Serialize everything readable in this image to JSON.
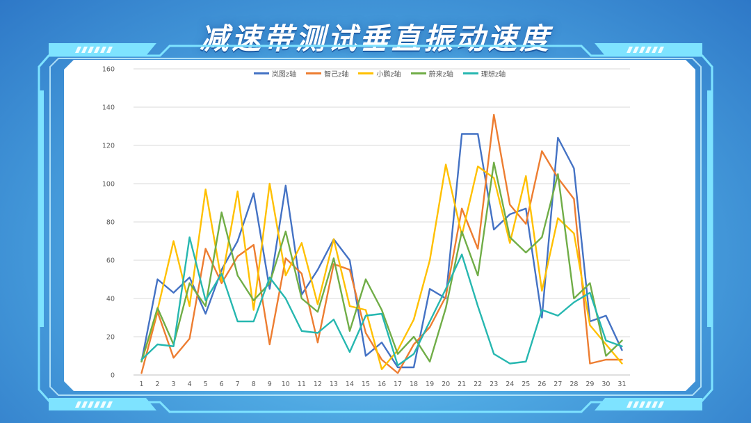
{
  "title": "减速带测试垂直振动速度",
  "colors": {
    "frame_cyan": "#7ee3ff",
    "frame_light": "#c9f3ff",
    "grid": "#d9d9d9",
    "axis": "#bfbfbf"
  },
  "chart_data": {
    "type": "line",
    "title": "",
    "xlabel": "",
    "ylabel": "",
    "ylim": [
      0,
      160
    ],
    "yticks": [
      0,
      20,
      40,
      60,
      80,
      100,
      120,
      140,
      160
    ],
    "grid": true,
    "legend_position": "top-center",
    "categories": [
      "1",
      "2",
      "3",
      "4",
      "5",
      "6",
      "7",
      "8",
      "9",
      "10",
      "11",
      "12",
      "13",
      "14",
      "15",
      "16",
      "17",
      "18",
      "19",
      "20",
      "21",
      "22",
      "23",
      "24",
      "25",
      "26",
      "27",
      "28",
      "29",
      "30",
      "31"
    ],
    "series": [
      {
        "name": "岚图z轴",
        "color": "#4472c4",
        "values": [
          7,
          50,
          43,
          51,
          32,
          55,
          70,
          95,
          45,
          99,
          42,
          55,
          71,
          60,
          10,
          17,
          4,
          4,
          45,
          40,
          126,
          126,
          76,
          84,
          87,
          30,
          124,
          108,
          28,
          31,
          13
        ]
      },
      {
        "name": "智己z轴",
        "color": "#ed7d31",
        "values": [
          1,
          33,
          9,
          19,
          66,
          48,
          62,
          68,
          16,
          61,
          53,
          17,
          58,
          55,
          22,
          8,
          1,
          16,
          25,
          41,
          87,
          66,
          136,
          89,
          79,
          117,
          103,
          92,
          6,
          8,
          8
        ]
      },
      {
        "name": "小鹏z轴",
        "color": "#ffc000",
        "values": [
          7,
          34,
          70,
          36,
          97,
          49,
          96,
          34,
          100,
          52,
          69,
          37,
          71,
          36,
          34,
          3,
          13,
          29,
          60,
          110,
          73,
          109,
          103,
          69,
          104,
          44,
          82,
          74,
          26,
          16,
          6
        ]
      },
      {
        "name": "蔚来z轴",
        "color": "#70ad47",
        "values": [
          7,
          35,
          16,
          48,
          36,
          85,
          52,
          39,
          48,
          75,
          40,
          33,
          61,
          23,
          50,
          34,
          11,
          20,
          7,
          35,
          75,
          52,
          111,
          72,
          64,
          72,
          105,
          40,
          48,
          10,
          18
        ]
      },
      {
        "name": "理想z轴",
        "color": "#26b7b0",
        "values": [
          8,
          16,
          15,
          72,
          39,
          53,
          28,
          28,
          51,
          40,
          23,
          22,
          29,
          12,
          31,
          32,
          5,
          11,
          28,
          45,
          63,
          36,
          11,
          6,
          7,
          34,
          31,
          38,
          43,
          18,
          15
        ]
      }
    ]
  }
}
